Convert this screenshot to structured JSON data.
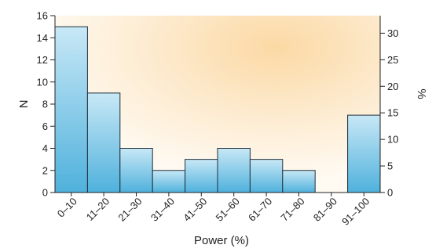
{
  "chart_data": {
    "type": "bar",
    "title": "",
    "xlabel": "Power (%)",
    "ylabel": "N",
    "y2label": "%",
    "categories": [
      "0–10",
      "11–20",
      "21–30",
      "31–40",
      "41–50",
      "51–60",
      "61–70",
      "71–80",
      "81–90",
      "91–100"
    ],
    "values": [
      15,
      9,
      4,
      2,
      3,
      4,
      3,
      2,
      0,
      7
    ],
    "ylim": [
      0,
      16
    ],
    "yticks": [
      "0",
      "2",
      "4",
      "6",
      "8",
      "10",
      "12",
      "14",
      "16"
    ],
    "y2lim": [
      0,
      33.3
    ],
    "y2ticks": [
      "0",
      "5",
      "10",
      "15",
      "20",
      "25",
      "30"
    ],
    "grid": false,
    "colors": {
      "bar_top": "#c8e8f6",
      "bar_bottom": "#4fb1dc",
      "background_warm": "#fbd9a4",
      "background_light": "#fffaf2"
    }
  }
}
